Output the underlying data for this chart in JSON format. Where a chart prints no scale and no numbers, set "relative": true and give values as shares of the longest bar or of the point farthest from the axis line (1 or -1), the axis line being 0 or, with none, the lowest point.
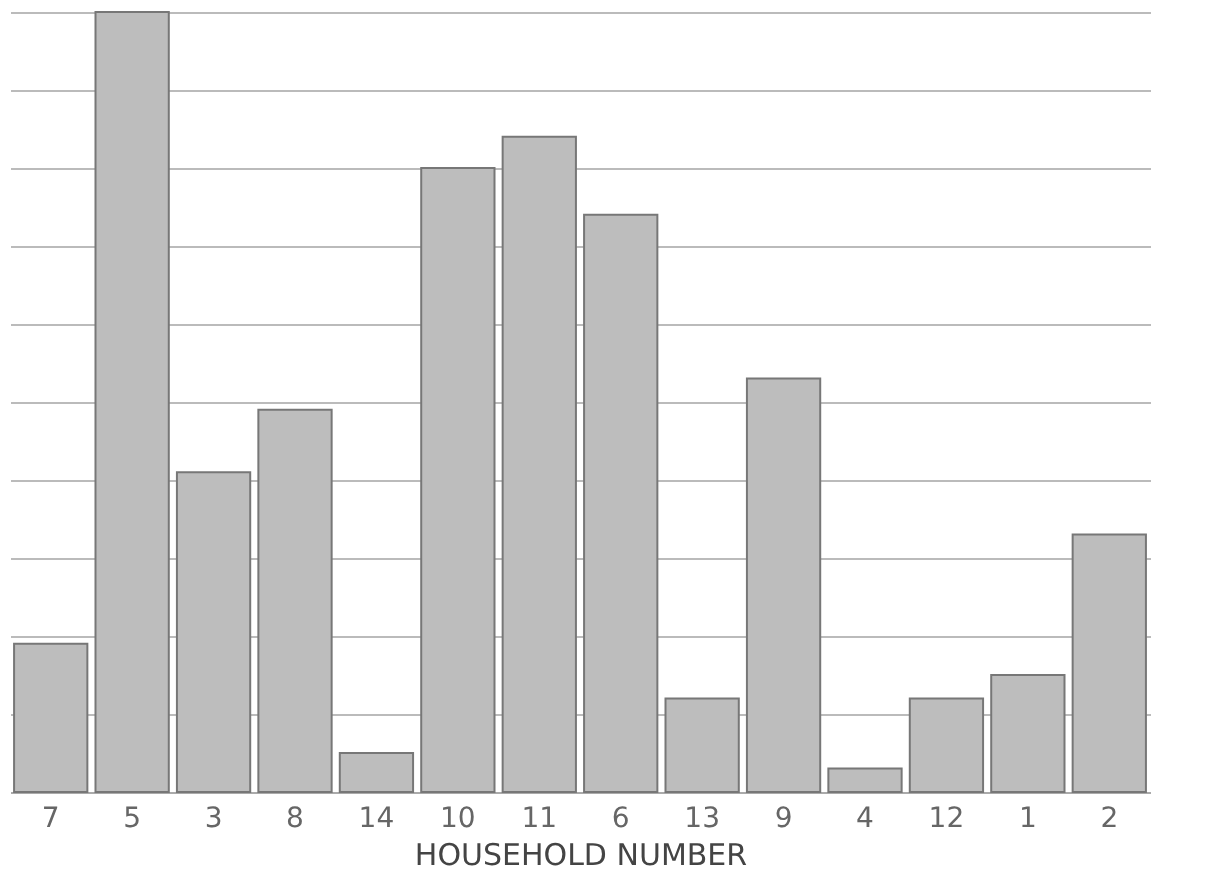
{
  "chart_data": {
    "type": "bar",
    "xlabel": "HOUSEHOLD NUMBER",
    "relative": true,
    "grid": "y",
    "color": "#bdbdbd",
    "categories": [
      "7",
      "5",
      "3",
      "8",
      "14",
      "10",
      "11",
      "6",
      "13",
      "9",
      "4",
      "12",
      "1",
      "2"
    ],
    "values": [
      0.19,
      1,
      0.41,
      0.49,
      0.05,
      0.8,
      0.84,
      0.74,
      0.12,
      0.53,
      0.03,
      0.12,
      0.15,
      0.33
    ]
  }
}
